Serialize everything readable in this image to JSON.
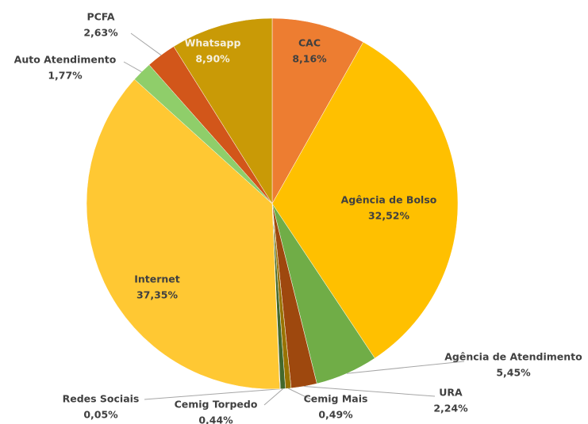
{
  "chart_data": {
    "type": "pie",
    "categories": [
      "CAC",
      "Agência de Bolso",
      "Agência de Atendimento",
      "URA",
      "Cemig Mais",
      "Cemig Torpedo",
      "Redes Sociais",
      "Internet",
      "Auto Atendimento",
      "PCFA",
      "Whatsapp"
    ],
    "values": [
      8.16,
      32.52,
      5.45,
      2.24,
      0.49,
      0.44,
      0.05,
      37.35,
      1.77,
      2.63,
      8.9
    ],
    "value_labels": [
      "8,16%",
      "32,52%",
      "5,45%",
      "2,24%",
      "0,49%",
      "0,44%",
      "0,05%",
      "37,35%",
      "1,77%",
      "2,63%",
      "8,90%"
    ],
    "colors": [
      "#ed7d31",
      "#ffc000",
      "#70ad47",
      "#9e480e",
      "#997300",
      "#43682b",
      "#7f6000",
      "#ffc833",
      "#8fce6a",
      "#d2561a",
      "#c99a06"
    ]
  }
}
